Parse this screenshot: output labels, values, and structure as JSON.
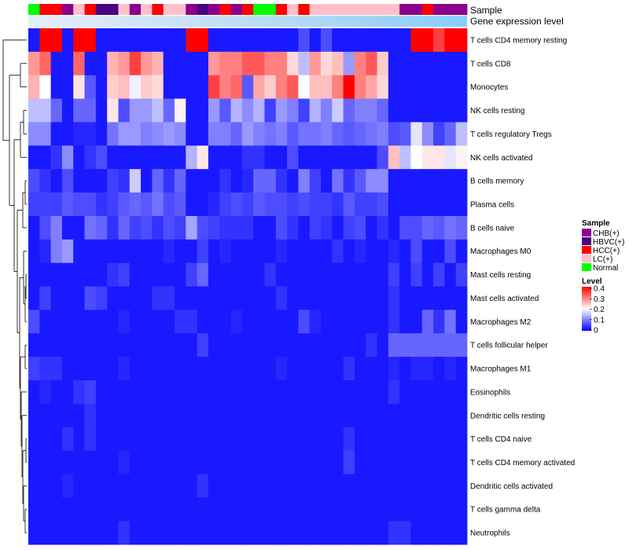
{
  "chart_data": {
    "type": "heatmap",
    "annotation_labels": {
      "sample": "Sample",
      "level": "Gene expression level"
    },
    "colors": {
      "low": "#0000ff",
      "mid": "#ffffff",
      "high": "#ff0000",
      "level_bar": "#87cefa",
      "level_bar_start": "#e4eefa"
    },
    "samples": [
      "Normal",
      "HCC(+)",
      "HCC(+)",
      "CHB(+)",
      "LC(+)",
      "HCC(+)",
      "HBVC(+)",
      "HBVC(+)",
      "LC(+)",
      "CHB(+)",
      "LC(+)",
      "HCC(+)",
      "LC(+)",
      "LC(+)",
      "CHB(+)",
      "HBVC(+)",
      "CHB(+)",
      "HCC(+)",
      "CHB(+)",
      "HCC(+)",
      "Normal",
      "Normal",
      "HCC(+)",
      "LC(+)",
      "HCC(+)",
      "LC(+)",
      "LC(+)",
      "LC(+)",
      "LC(+)",
      "LC(+)",
      "LC(+)",
      "LC(+)",
      "LC(+)",
      "CHB(+)",
      "CHB(+)",
      "HCC(+)",
      "CHB(+)",
      "CHB(+)",
      "CHB(+)"
    ],
    "rows": [
      "T cells CD4 memory resting",
      "T cells CD8",
      "Monocytes",
      "NK cells resting",
      "T cells regulatory  Tregs",
      "NK cells activated",
      "B cells memory",
      "Plasma cells",
      "B cells naive",
      "Macrophages M0",
      "Mast cells resting",
      "Mast cells activated",
      "Macrophages M2",
      "T cells follicular helper",
      "Macrophages M1",
      "Eosinophils",
      "Dendritic cells resting",
      "T cells CD4 naive",
      "T cells CD4 memory activated",
      "Dendritic cells activated",
      "T cells gamma delta",
      "Neutrophils"
    ],
    "values": [
      [
        0.02,
        0.4,
        0.4,
        0.02,
        0.4,
        0.4,
        0.02,
        0.02,
        0.02,
        0.02,
        0.02,
        0.02,
        0.02,
        0.02,
        0.4,
        0.4,
        0.02,
        0.02,
        0.02,
        0.02,
        0.02,
        0.02,
        0.02,
        0.02,
        0.06,
        0.02,
        0.06,
        0.02,
        0.02,
        0.02,
        0.02,
        0.02,
        0.02,
        0.02,
        0.4,
        0.4,
        0.35,
        0.4,
        0.4
      ],
      [
        0.28,
        0.32,
        0.02,
        0.02,
        0.32,
        0.02,
        0.02,
        0.26,
        0.28,
        0.35,
        0.28,
        0.26,
        0.02,
        0.02,
        0.02,
        0.02,
        0.28,
        0.3,
        0.3,
        0.33,
        0.33,
        0.3,
        0.3,
        0.23,
        0.15,
        0.28,
        0.23,
        0.25,
        0.12,
        0.3,
        0.33,
        0.24,
        0.02,
        0.02,
        0.02,
        0.02,
        0.02,
        0.02,
        0.02
      ],
      [
        0.26,
        0.2,
        0.02,
        0.02,
        0.22,
        0.07,
        0.02,
        0.24,
        0.25,
        0.19,
        0.24,
        0.23,
        0.02,
        0.02,
        0.02,
        0.02,
        0.35,
        0.3,
        0.32,
        0.07,
        0.27,
        0.24,
        0.3,
        0.33,
        0.2,
        0.25,
        0.25,
        0.3,
        0.4,
        0.3,
        0.27,
        0.23,
        0.02,
        0.02,
        0.02,
        0.02,
        0.02,
        0.02,
        0.02
      ],
      [
        0.15,
        0.15,
        0.08,
        0.02,
        0.08,
        0.08,
        0.02,
        0.22,
        0.06,
        0.12,
        0.12,
        0.15,
        0.08,
        0.21,
        0.02,
        0.02,
        0.12,
        0.07,
        0.14,
        0.11,
        0.14,
        0.05,
        0.12,
        0.1,
        0.05,
        0.14,
        0.1,
        0.16,
        0.08,
        0.1,
        0.1,
        0.08,
        0.02,
        0.02,
        0.02,
        0.02,
        0.02,
        0.02,
        0.02
      ],
      [
        0.11,
        0.11,
        0.02,
        0.02,
        0.03,
        0.03,
        0.02,
        0.09,
        0.12,
        0.12,
        0.1,
        0.11,
        0.12,
        0.11,
        0.02,
        0.02,
        0.1,
        0.1,
        0.08,
        0.12,
        0.1,
        0.09,
        0.1,
        0.07,
        0.09,
        0.09,
        0.1,
        0.08,
        0.07,
        0.08,
        0.09,
        0.1,
        0.06,
        0.07,
        0.18,
        0.11,
        0.05,
        0.08,
        0.15
      ],
      [
        0.02,
        0.02,
        0.04,
        0.11,
        0.02,
        0.04,
        0.06,
        0.02,
        0.02,
        0.02,
        0.02,
        0.02,
        0.02,
        0.02,
        0.14,
        0.22,
        0.02,
        0.02,
        0.02,
        0.04,
        0.04,
        0.02,
        0.02,
        0.06,
        0.02,
        0.02,
        0.02,
        0.02,
        0.02,
        0.02,
        0.02,
        0.06,
        0.25,
        0.15,
        0.2,
        0.22,
        0.22,
        0.18,
        0.21
      ],
      [
        0.06,
        0.04,
        0.02,
        0.06,
        0.02,
        0.02,
        0.02,
        0.05,
        0.04,
        0.16,
        0.02,
        0.08,
        0.04,
        0.08,
        0.02,
        0.02,
        0.02,
        0.04,
        0.02,
        0.03,
        0.08,
        0.08,
        0.04,
        0.02,
        0.1,
        0.05,
        0.02,
        0.09,
        0.04,
        0.07,
        0.11,
        0.11,
        0.02,
        0.02,
        0.02,
        0.02,
        0.02,
        0.02,
        0.02
      ],
      [
        0.05,
        0.05,
        0.05,
        0.07,
        0.06,
        0.06,
        0.04,
        0.05,
        0.07,
        0.08,
        0.07,
        0.09,
        0.06,
        0.07,
        0.02,
        0.02,
        0.03,
        0.05,
        0.06,
        0.05,
        0.07,
        0.06,
        0.06,
        0.05,
        0.06,
        0.05,
        0.05,
        0.04,
        0.07,
        0.05,
        0.05,
        0.06,
        0.02,
        0.02,
        0.02,
        0.02,
        0.02,
        0.02,
        0.02
      ],
      [
        0.02,
        0.06,
        0.1,
        0.02,
        0.02,
        0.09,
        0.08,
        0.04,
        0.08,
        0.05,
        0.06,
        0.04,
        0.06,
        0.05,
        0.13,
        0.06,
        0.05,
        0.04,
        0.04,
        0.04,
        0.02,
        0.02,
        0.06,
        0.04,
        0.02,
        0.05,
        0.04,
        0.02,
        0.05,
        0.06,
        0.02,
        0.04,
        0.02,
        0.06,
        0.06,
        0.08,
        0.07,
        0.09,
        0.08
      ],
      [
        0.02,
        0.03,
        0.1,
        0.12,
        0.02,
        0.02,
        0.02,
        0.02,
        0.02,
        0.02,
        0.02,
        0.02,
        0.03,
        0.02,
        0.02,
        0.05,
        0.02,
        0.03,
        0.02,
        0.02,
        0.02,
        0.02,
        0.03,
        0.02,
        0.02,
        0.02,
        0.02,
        0.04,
        0.02,
        0.03,
        0.02,
        0.02,
        0.03,
        0.02,
        0.06,
        0.02,
        0.02,
        0.06,
        0.02
      ],
      [
        0.02,
        0.02,
        0.02,
        0.02,
        0.02,
        0.02,
        0.02,
        0.04,
        0.05,
        0.02,
        0.02,
        0.02,
        0.02,
        0.02,
        0.05,
        0.08,
        0.02,
        0.02,
        0.02,
        0.02,
        0.02,
        0.04,
        0.02,
        0.02,
        0.02,
        0.02,
        0.02,
        0.02,
        0.02,
        0.02,
        0.02,
        0.02,
        0.05,
        0.02,
        0.05,
        0.02,
        0.05,
        0.02,
        0.05
      ],
      [
        0.02,
        0.05,
        0.02,
        0.02,
        0.02,
        0.06,
        0.05,
        0.02,
        0.02,
        0.02,
        0.02,
        0.04,
        0.04,
        0.02,
        0.02,
        0.02,
        0.02,
        0.02,
        0.02,
        0.02,
        0.02,
        0.02,
        0.04,
        0.02,
        0.02,
        0.02,
        0.02,
        0.02,
        0.02,
        0.02,
        0.02,
        0.02,
        0.04,
        0.02,
        0.02,
        0.02,
        0.02,
        0.02,
        0.02
      ],
      [
        0.06,
        0.02,
        0.02,
        0.02,
        0.02,
        0.02,
        0.02,
        0.02,
        0.03,
        0.02,
        0.02,
        0.02,
        0.02,
        0.04,
        0.04,
        0.02,
        0.02,
        0.02,
        0.03,
        0.02,
        0.02,
        0.02,
        0.02,
        0.02,
        0.06,
        0.03,
        0.02,
        0.02,
        0.02,
        0.02,
        0.02,
        0.02,
        0.04,
        0.02,
        0.02,
        0.08,
        0.04,
        0.09,
        0.02
      ],
      [
        0.02,
        0.02,
        0.02,
        0.02,
        0.02,
        0.02,
        0.02,
        0.02,
        0.02,
        0.02,
        0.02,
        0.02,
        0.02,
        0.02,
        0.02,
        0.05,
        0.02,
        0.02,
        0.02,
        0.02,
        0.02,
        0.02,
        0.02,
        0.02,
        0.02,
        0.02,
        0.02,
        0.02,
        0.02,
        0.02,
        0.04,
        0.02,
        0.08,
        0.08,
        0.08,
        0.08,
        0.08,
        0.08,
        0.08
      ],
      [
        0.05,
        0.04,
        0.04,
        0.02,
        0.02,
        0.02,
        0.02,
        0.02,
        0.03,
        0.02,
        0.02,
        0.02,
        0.02,
        0.02,
        0.02,
        0.02,
        0.02,
        0.02,
        0.02,
        0.02,
        0.02,
        0.02,
        0.03,
        0.02,
        0.02,
        0.02,
        0.02,
        0.02,
        0.04,
        0.02,
        0.02,
        0.02,
        0.03,
        0.02,
        0.03,
        0.03,
        0.02,
        0.03,
        0.02
      ],
      [
        0.02,
        0.03,
        0.02,
        0.02,
        0.04,
        0.05,
        0.02,
        0.02,
        0.02,
        0.02,
        0.02,
        0.02,
        0.02,
        0.02,
        0.02,
        0.02,
        0.02,
        0.02,
        0.02,
        0.02,
        0.02,
        0.02,
        0.02,
        0.02,
        0.02,
        0.02,
        0.02,
        0.02,
        0.02,
        0.02,
        0.02,
        0.02,
        0.04,
        0.02,
        0.02,
        0.02,
        0.02,
        0.02,
        0.02
      ],
      [
        0.02,
        0.02,
        0.02,
        0.02,
        0.02,
        0.04,
        0.02,
        0.02,
        0.02,
        0.02,
        0.02,
        0.02,
        0.02,
        0.02,
        0.02,
        0.02,
        0.02,
        0.02,
        0.02,
        0.02,
        0.02,
        0.02,
        0.02,
        0.02,
        0.02,
        0.02,
        0.02,
        0.02,
        0.02,
        0.02,
        0.02,
        0.02,
        0.02,
        0.02,
        0.02,
        0.02,
        0.02,
        0.02,
        0.02
      ],
      [
        0.02,
        0.02,
        0.02,
        0.04,
        0.02,
        0.04,
        0.02,
        0.02,
        0.02,
        0.02,
        0.02,
        0.02,
        0.02,
        0.02,
        0.02,
        0.02,
        0.02,
        0.02,
        0.02,
        0.02,
        0.02,
        0.02,
        0.02,
        0.02,
        0.02,
        0.02,
        0.02,
        0.02,
        0.04,
        0.02,
        0.02,
        0.02,
        0.02,
        0.02,
        0.02,
        0.02,
        0.02,
        0.02,
        0.02
      ],
      [
        0.02,
        0.02,
        0.02,
        0.02,
        0.02,
        0.02,
        0.02,
        0.02,
        0.03,
        0.02,
        0.02,
        0.02,
        0.02,
        0.02,
        0.02,
        0.02,
        0.02,
        0.02,
        0.02,
        0.02,
        0.02,
        0.02,
        0.02,
        0.02,
        0.02,
        0.02,
        0.02,
        0.02,
        0.05,
        0.02,
        0.02,
        0.02,
        0.02,
        0.02,
        0.02,
        0.02,
        0.02,
        0.02,
        0.02
      ],
      [
        0.02,
        0.02,
        0.02,
        0.03,
        0.02,
        0.02,
        0.02,
        0.02,
        0.02,
        0.02,
        0.02,
        0.02,
        0.02,
        0.02,
        0.02,
        0.04,
        0.02,
        0.02,
        0.02,
        0.02,
        0.02,
        0.02,
        0.02,
        0.02,
        0.02,
        0.02,
        0.02,
        0.02,
        0.02,
        0.02,
        0.02,
        0.02,
        0.02,
        0.02,
        0.02,
        0.02,
        0.02,
        0.02,
        0.02
      ],
      [
        0.02,
        0.02,
        0.02,
        0.02,
        0.02,
        0.02,
        0.02,
        0.02,
        0.02,
        0.02,
        0.02,
        0.02,
        0.02,
        0.02,
        0.02,
        0.02,
        0.02,
        0.02,
        0.02,
        0.02,
        0.02,
        0.02,
        0.02,
        0.02,
        0.02,
        0.02,
        0.02,
        0.02,
        0.02,
        0.02,
        0.02,
        0.02,
        0.02,
        0.02,
        0.02,
        0.02,
        0.02,
        0.02,
        0.02
      ],
      [
        0.02,
        0.02,
        0.02,
        0.02,
        0.02,
        0.02,
        0.02,
        0.02,
        0.04,
        0.02,
        0.02,
        0.02,
        0.02,
        0.02,
        0.02,
        0.02,
        0.02,
        0.02,
        0.02,
        0.02,
        0.02,
        0.02,
        0.02,
        0.02,
        0.02,
        0.02,
        0.02,
        0.02,
        0.02,
        0.02,
        0.02,
        0.02,
        0.04,
        0.04,
        0.02,
        0.02,
        0.02,
        0.02,
        0.02
      ]
    ],
    "legend": {
      "sample_title": "Sample",
      "sample_entries": [
        {
          "label": "CHB(+)",
          "color": "#8b008b"
        },
        {
          "label": "HBVC(+)",
          "color": "#4b0082"
        },
        {
          "label": "HCC(+)",
          "color": "#ff0000"
        },
        {
          "label": "LC(+)",
          "color": "#ffc0cb"
        },
        {
          "label": "Normal",
          "color": "#00ff00"
        }
      ],
      "level_title": "Level",
      "level_ticks": [
        "0.4",
        "0.3",
        "0.2",
        "0.1",
        "0"
      ],
      "level_range": [
        0,
        0.4
      ]
    }
  }
}
